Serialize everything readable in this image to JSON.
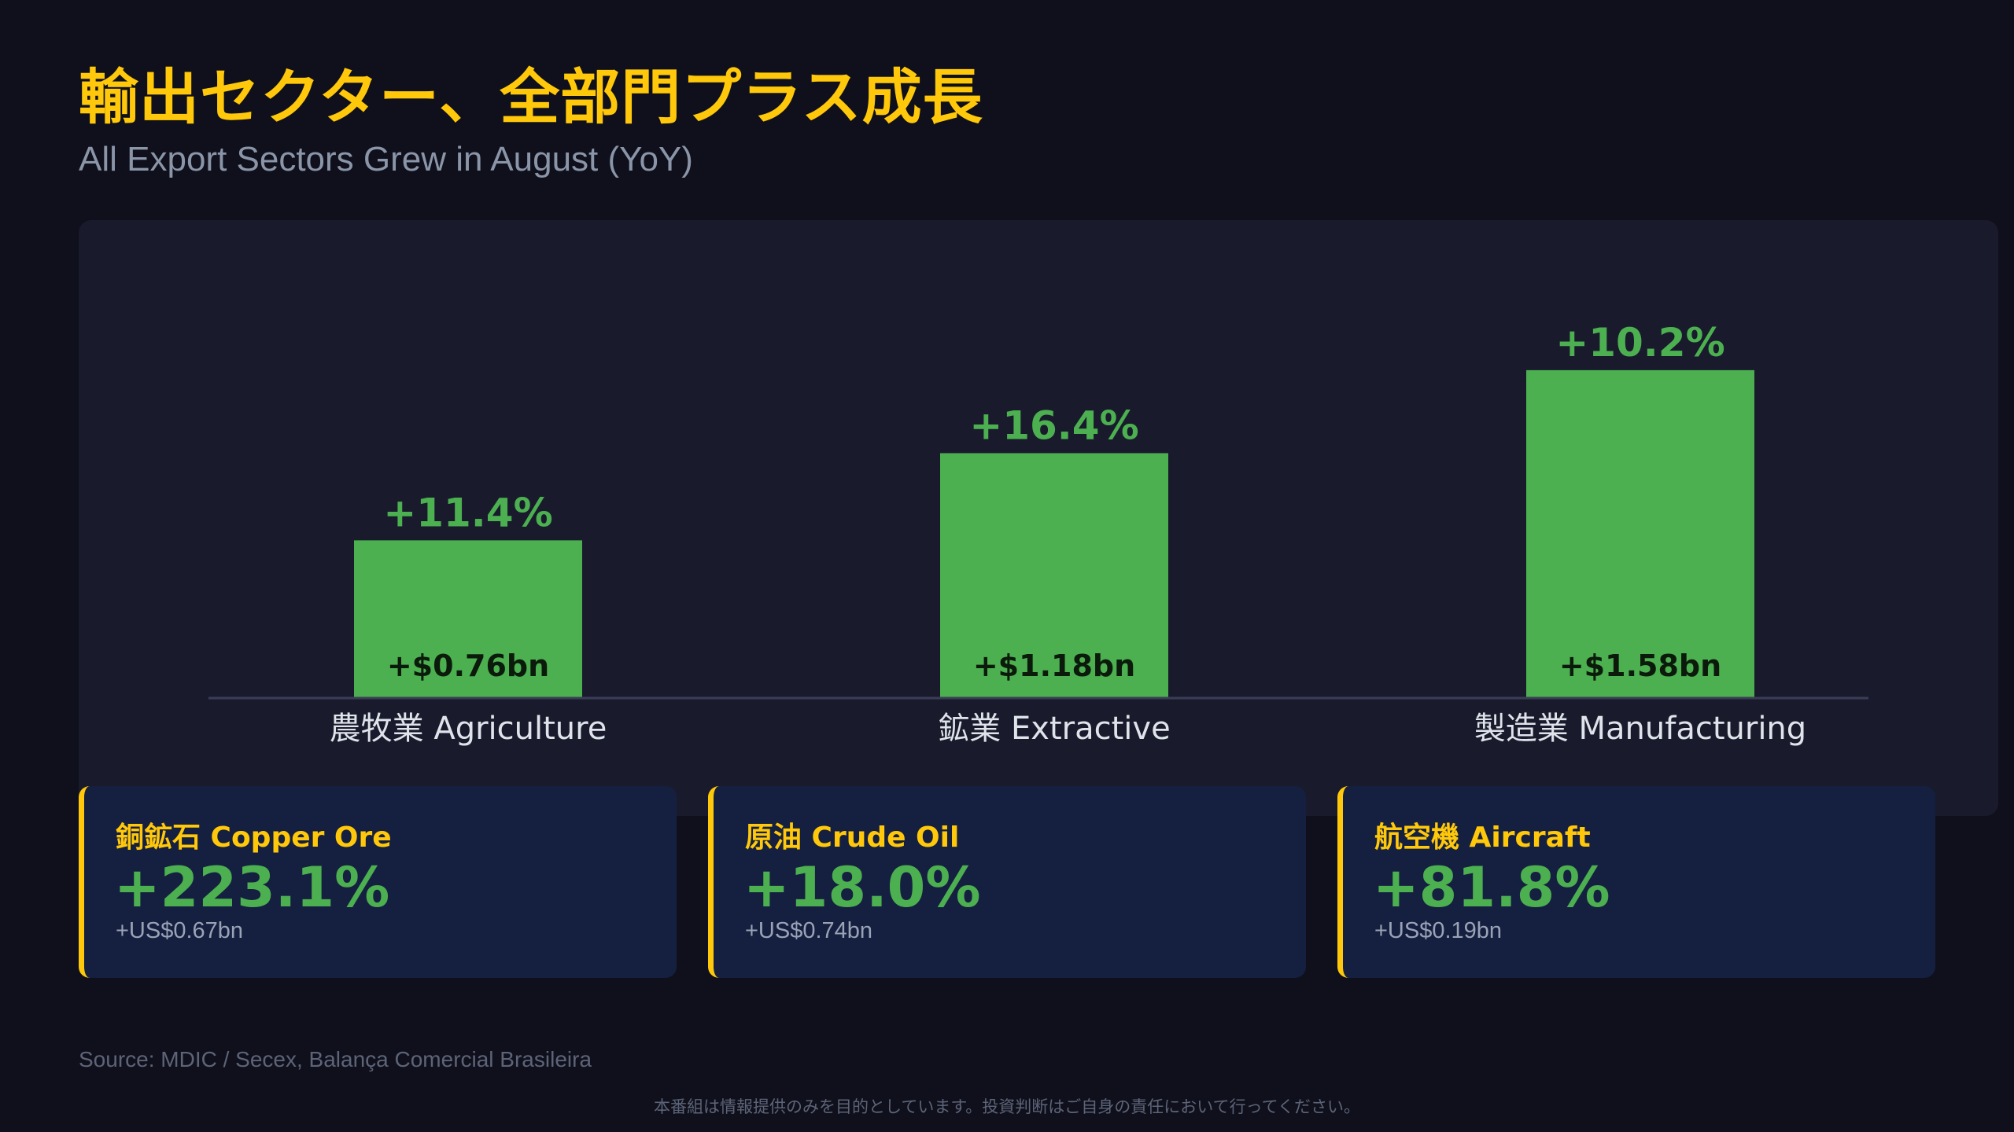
{
  "header": {
    "title": "輸出セクター、全部門プラス成長",
    "subtitle": "All Export Sectors Grew in August (YoY)"
  },
  "chart_data": {
    "type": "bar",
    "categories": [
      "農牧業 Agriculture",
      "鉱業 Extractive",
      "製造業 Manufacturing"
    ],
    "values": [
      0.76,
      1.18,
      1.58
    ],
    "value_labels": [
      "+$0.76bn",
      "+$1.18bn",
      "+$1.58bn"
    ],
    "growth_labels": [
      "+11.4%",
      "+16.4%",
      "+10.2%"
    ],
    "ylim": [
      0,
      2.0
    ],
    "grid": false,
    "bar_color": "#4caf50"
  },
  "cards": [
    {
      "label": "銅鉱石 Copper Ore",
      "pct": "+223.1%",
      "sub": "+US$0.67bn"
    },
    {
      "label": "原油 Crude Oil",
      "pct": "+18.0%",
      "sub": "+US$0.74bn"
    },
    {
      "label": "航空機 Aircraft",
      "pct": "+81.8%",
      "sub": "+US$0.19bn"
    }
  ],
  "footer": {
    "source": "Source: MDIC / Secex, Balança Comercial Brasileira",
    "disclaimer": "本番組は情報提供のみを目的としています。投資判断はご自身の責任において行ってください。"
  },
  "colors": {
    "background": "#0f101c",
    "panel": "#191b2d",
    "accent": "#ffc80a",
    "positive": "#4caf50",
    "card": "#152041"
  }
}
